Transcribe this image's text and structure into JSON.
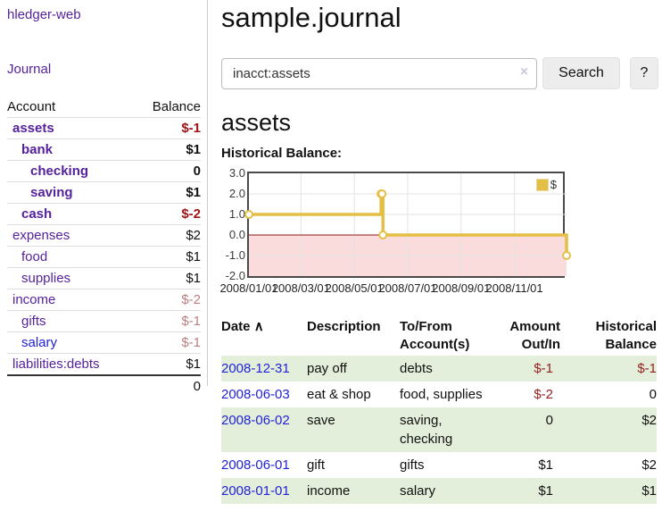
{
  "app": {
    "brand": "hledger-web",
    "nav": {
      "journal": "Journal"
    }
  },
  "icons": {
    "clear": "×",
    "sort_asc": "∧"
  },
  "colors": {
    "link_purple": "#55229b",
    "link_blue": "#2222d6",
    "negative_strong": "#a01414",
    "negative": "#952020",
    "negative_muted": "#bc7f7f",
    "row_green": "#e3efda",
    "chart_gold": "#e5be45",
    "chart_pink": "#fadcdc",
    "chart_zero_line": "#8b1515",
    "chart_border": "#4a4a4a"
  },
  "sidebar": {
    "headers": {
      "account": "Account",
      "balance": "Balance"
    },
    "rows": [
      {
        "account": "assets",
        "balance": "$-1"
      },
      {
        "account": "bank",
        "balance": "$1"
      },
      {
        "account": "checking",
        "balance": "0"
      },
      {
        "account": "saving",
        "balance": "$1"
      },
      {
        "account": "cash",
        "balance": "$-2"
      },
      {
        "account": "expenses",
        "balance": "$2"
      },
      {
        "account": "food",
        "balance": "$1"
      },
      {
        "account": "supplies",
        "balance": "$1"
      },
      {
        "account": "income",
        "balance": "$-2"
      },
      {
        "account": "gifts",
        "balance": "$-1"
      },
      {
        "account": "salary",
        "balance": "$-1"
      },
      {
        "account": "liabilities:debts",
        "balance": "$1"
      }
    ],
    "total": "0"
  },
  "main": {
    "title": "sample.journal",
    "search": {
      "value": "inacct:assets",
      "button": "Search",
      "help_button": "?"
    },
    "account_heading": "assets",
    "chart_heading": "Historical Balance:"
  },
  "chart_data": {
    "type": "line",
    "step": true,
    "title": "Historical Balance",
    "ylim": [
      -2,
      3
    ],
    "yticks": [
      {
        "label": "3.0",
        "value": 3
      },
      {
        "label": "2.0",
        "value": 2
      },
      {
        "label": "1.0",
        "value": 1
      },
      {
        "label": "0.0",
        "value": 0
      },
      {
        "label": "-1.0",
        "value": -1
      },
      {
        "label": "-2.0",
        "value": -2
      }
    ],
    "ygrid": [
      2,
      1,
      -1
    ],
    "xticks": [
      {
        "label": "2008/01/01",
        "x": 0.0
      },
      {
        "label": "2008/03/01",
        "x": 0.164
      },
      {
        "label": "2008/05/01",
        "x": 0.332
      },
      {
        "label": "2008/07/01",
        "x": 0.5
      },
      {
        "label": "2008/09/01",
        "x": 0.668
      },
      {
        "label": "2008/11/01",
        "x": 0.836
      }
    ],
    "grid_color": "#e3e3e3",
    "below_zero_fill": "#fadcdc",
    "zero_line_color": "#8b1515",
    "legend_position": "top-right",
    "series": [
      {
        "name": "$",
        "color": "#e5be45",
        "points": [
          {
            "date": "2008-01-01",
            "x": 0.0,
            "y": 1
          },
          {
            "date": "2008-06-01",
            "x": 0.416,
            "y": 2
          },
          {
            "date": "2008-06-02",
            "x": 0.419,
            "y": 2
          },
          {
            "date": "2008-06-03",
            "x": 0.422,
            "y": 0
          },
          {
            "date": "2008-12-31",
            "x": 1.0,
            "y": -1
          }
        ]
      }
    ]
  },
  "register": {
    "headers": [
      "Date",
      "Description",
      "To/From Account(s)",
      "Amount Out/In",
      "Historical Balance"
    ],
    "rows": [
      {
        "date": "2008-12-31",
        "description": "pay off",
        "accounts": "debts",
        "amount": "$-1",
        "balance": "$-1"
      },
      {
        "date": "2008-06-03",
        "description": "eat & shop",
        "accounts": "food, supplies",
        "amount": "$-2",
        "balance": "0"
      },
      {
        "date": "2008-06-02",
        "description": "save",
        "accounts": "saving, checking",
        "amount": "0",
        "balance": "$2"
      },
      {
        "date": "2008-06-01",
        "description": "gift",
        "accounts": "gifts",
        "amount": "$1",
        "balance": "$2"
      },
      {
        "date": "2008-01-01",
        "description": "income",
        "accounts": "salary",
        "amount": "$1",
        "balance": "$1"
      }
    ]
  }
}
